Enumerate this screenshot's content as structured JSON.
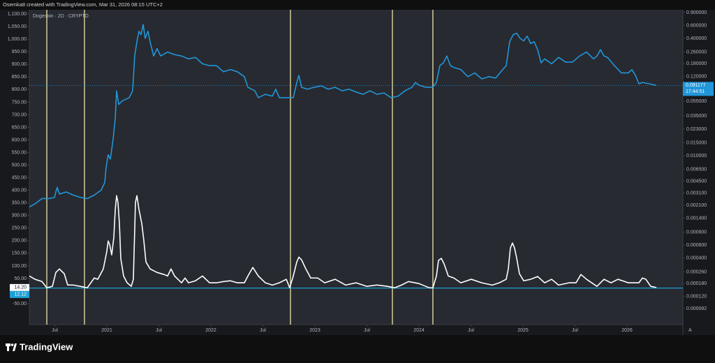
{
  "chart_data": {
    "type": "line",
    "credit": "Osemka8 created with TradingView.com, Mar 31, 2026 08:15 UTC+2",
    "title": "Dogecoin · 2D · CRYPTO",
    "brand": "TradingView",
    "auto_scale_label": "A",
    "xlim": [
      2020.255,
      2026.537
    ],
    "xticks": [
      {
        "value": 2020.5,
        "label": "Jul"
      },
      2021,
      {
        "value": 2021.5,
        "label": "Jul"
      },
      2022,
      {
        "value": 2022.5,
        "label": "Jul"
      },
      2023,
      {
        "value": 2023.5,
        "label": "Jul"
      },
      2024,
      {
        "value": 2024.5,
        "label": "Jul"
      },
      2025,
      {
        "value": 2025.5,
        "label": "Jul"
      },
      2026
    ],
    "ylim": [
      -133,
      1117
    ],
    "yticks": [
      {
        "value": 1100,
        "label": "1,100.00"
      },
      {
        "value": 1050,
        "label": "1,050.00"
      },
      {
        "value": 1000,
        "label": "1,000.00"
      },
      {
        "value": 950,
        "label": "950.00"
      },
      {
        "value": 900,
        "label": "900.00"
      },
      {
        "value": 850,
        "label": "850.00"
      },
      {
        "value": 800,
        "label": "800.00"
      },
      {
        "value": 750,
        "label": "750.00"
      },
      {
        "value": 700,
        "label": "700.00"
      },
      {
        "value": 650,
        "label": "650.00"
      },
      {
        "value": 600,
        "label": "600.00"
      },
      {
        "value": 550,
        "label": "550.00"
      },
      {
        "value": 500,
        "label": "500.00"
      },
      {
        "value": 450,
        "label": "450.00"
      },
      {
        "value": 400,
        "label": "400.00"
      },
      {
        "value": 350,
        "label": "350.00"
      },
      {
        "value": 300,
        "label": "300.00"
      },
      {
        "value": 250,
        "label": "250.00"
      },
      {
        "value": 200,
        "label": "200.00"
      },
      {
        "value": 150,
        "label": "150.00"
      },
      {
        "value": 100,
        "label": "100.00"
      },
      {
        "value": 50,
        "label": "50.00"
      },
      {
        "value": -50,
        "label": "-50.00"
      }
    ],
    "y2lim": [
      4.95e-05,
      0.983
    ],
    "y2_log": true,
    "y2ticks": [
      {
        "value": 0.9,
        "label": "0.900000"
      },
      {
        "value": 0.6,
        "label": "0.600000"
      },
      {
        "value": 0.4,
        "label": "0.400000"
      },
      {
        "value": 0.26,
        "label": "0.260000"
      },
      {
        "value": 0.18,
        "label": "0.180000"
      },
      {
        "value": 0.12,
        "label": "0.120000"
      },
      {
        "value": 0.055,
        "label": "0.055000"
      },
      {
        "value": 0.035,
        "label": "0.035000"
      },
      {
        "value": 0.023,
        "label": "0.023000"
      },
      {
        "value": 0.015,
        "label": "0.015000"
      },
      {
        "value": 0.01,
        "label": "0.010000"
      },
      {
        "value": 0.0065,
        "label": "0.006500"
      },
      {
        "value": 0.0045,
        "label": "0.004500"
      },
      {
        "value": 0.0031,
        "label": "0.003100"
      },
      {
        "value": 0.0021,
        "label": "0.002100"
      },
      {
        "value": 0.0014,
        "label": "0.001400"
      },
      {
        "value": 0.0009,
        "label": "0.000900"
      },
      {
        "value": 0.0006,
        "label": "0.000600"
      },
      {
        "value": 0.0004,
        "label": "0.000400"
      },
      {
        "value": 0.00026,
        "label": "0.000260"
      },
      {
        "value": 0.00018,
        "label": "0.000180"
      },
      {
        "value": 0.00012,
        "label": "0.000120"
      },
      {
        "value": 8.2e-05,
        "label": "0.000082"
      }
    ],
    "series": [
      {
        "color": "#2196d9",
        "axis": "y2",
        "x": [
          2020.255,
          2020.309,
          2020.376,
          2020.443,
          2020.497,
          2020.51,
          2020.523,
          2020.544,
          2020.611,
          2020.678,
          2020.745,
          2020.812,
          2020.879,
          2020.946,
          2020.98,
          2020.993,
          2021.013,
          2021.034,
          2021.06,
          2021.081,
          2021.094,
          2021.114,
          2021.148,
          2021.215,
          2021.248,
          2021.268,
          2021.289,
          2021.309,
          2021.329,
          2021.349,
          2021.369,
          2021.396,
          2021.416,
          2021.45,
          2021.483,
          2021.517,
          2021.584,
          2021.651,
          2021.718,
          2021.785,
          2021.852,
          2021.919,
          2021.987,
          2022.054,
          2022.121,
          2022.188,
          2022.255,
          2022.322,
          2022.356,
          2022.423,
          2022.456,
          2022.523,
          2022.591,
          2022.624,
          2022.658,
          2022.758,
          2022.792,
          2022.826,
          2022.846,
          2022.872,
          2022.926,
          2022.993,
          2023.06,
          2023.128,
          2023.195,
          2023.262,
          2023.329,
          2023.396,
          2023.463,
          2023.53,
          2023.597,
          2023.664,
          2023.732,
          2023.799,
          2023.866,
          2023.933,
          2023.966,
          2024.0,
          2024.067,
          2024.134,
          2024.168,
          2024.201,
          2024.235,
          2024.268,
          2024.302,
          2024.336,
          2024.403,
          2024.47,
          2024.537,
          2024.604,
          2024.671,
          2024.738,
          2024.805,
          2024.839,
          2024.872,
          2024.906,
          2024.94,
          2024.973,
          2025.007,
          2025.04,
          2025.074,
          2025.107,
          2025.141,
          2025.174,
          2025.208,
          2025.275,
          2025.342,
          2025.409,
          2025.477,
          2025.544,
          2025.611,
          2025.678,
          2025.711,
          2025.745,
          2025.779,
          2025.812,
          2025.879,
          2025.946,
          2026.013,
          2026.047,
          2026.081,
          2026.114,
          2026.148,
          2026.215,
          2026.282
        ],
        "values": [
          0.002,
          0.0022,
          0.0026,
          0.0026,
          0.0027,
          0.0032,
          0.0037,
          0.003,
          0.0032,
          0.0029,
          0.0027,
          0.0026,
          0.0029,
          0.0034,
          0.0043,
          0.0069,
          0.0103,
          0.009,
          0.0167,
          0.032,
          0.077,
          0.05,
          0.056,
          0.062,
          0.077,
          0.23,
          0.36,
          0.5,
          0.45,
          0.62,
          0.4,
          0.5,
          0.36,
          0.23,
          0.29,
          0.23,
          0.26,
          0.24,
          0.23,
          0.21,
          0.22,
          0.18,
          0.17,
          0.17,
          0.14,
          0.15,
          0.14,
          0.12,
          0.086,
          0.077,
          0.062,
          0.069,
          0.065,
          0.081,
          0.062,
          0.062,
          0.062,
          0.1,
          0.125,
          0.086,
          0.081,
          0.086,
          0.09,
          0.081,
          0.086,
          0.077,
          0.081,
          0.074,
          0.069,
          0.077,
          0.069,
          0.072,
          0.062,
          0.065,
          0.077,
          0.086,
          0.1,
          0.092,
          0.086,
          0.086,
          0.1,
          0.17,
          0.185,
          0.23,
          0.17,
          0.16,
          0.15,
          0.12,
          0.135,
          0.112,
          0.12,
          0.115,
          0.15,
          0.17,
          0.36,
          0.45,
          0.47,
          0.4,
          0.37,
          0.43,
          0.34,
          0.36,
          0.28,
          0.185,
          0.21,
          0.18,
          0.22,
          0.19,
          0.19,
          0.23,
          0.26,
          0.21,
          0.23,
          0.28,
          0.23,
          0.22,
          0.17,
          0.135,
          0.135,
          0.15,
          0.125,
          0.096,
          0.1,
          0.096,
          0.091177
        ]
      },
      {
        "color": "#ffffff",
        "axis": "y",
        "x": [
          2020.255,
          2020.309,
          2020.376,
          2020.423,
          2020.477,
          2020.51,
          2020.544,
          2020.591,
          2020.624,
          2020.678,
          2020.745,
          2020.812,
          2020.879,
          2020.913,
          2020.966,
          2021.0,
          2021.013,
          2021.027,
          2021.047,
          2021.067,
          2021.081,
          2021.094,
          2021.107,
          2021.121,
          2021.134,
          2021.161,
          2021.195,
          2021.235,
          2021.255,
          2021.275,
          2021.289,
          2021.309,
          2021.336,
          2021.356,
          2021.376,
          2021.416,
          2021.483,
          2021.55,
          2021.584,
          2021.617,
          2021.651,
          2021.718,
          2021.752,
          2021.785,
          2021.852,
          2021.919,
          2021.987,
          2022.054,
          2022.121,
          2022.188,
          2022.255,
          2022.322,
          2022.356,
          2022.403,
          2022.456,
          2022.523,
          2022.591,
          2022.658,
          2022.725,
          2022.758,
          2022.792,
          2022.826,
          2022.846,
          2022.872,
          2022.913,
          2022.96,
          2023.027,
          2023.094,
          2023.195,
          2023.295,
          2023.396,
          2023.497,
          2023.597,
          2023.698,
          2023.765,
          2023.832,
          2023.899,
          2024.0,
          2024.101,
          2024.134,
          2024.168,
          2024.188,
          2024.215,
          2024.242,
          2024.282,
          2024.336,
          2024.403,
          2024.503,
          2024.604,
          2024.705,
          2024.772,
          2024.839,
          2024.859,
          2024.879,
          2024.899,
          2024.919,
          2024.94,
          2024.966,
          2025.007,
          2025.074,
          2025.141,
          2025.208,
          2025.275,
          2025.342,
          2025.443,
          2025.51,
          2025.557,
          2025.611,
          2025.711,
          2025.779,
          2025.846,
          2025.913,
          2026.013,
          2026.114,
          2026.148,
          2026.181,
          2026.228,
          2026.282
        ],
        "values": [
          60,
          47,
          38,
          13,
          19,
          74,
          88,
          69,
          24,
          24,
          19,
          13,
          52,
          47,
          88,
          158,
          199,
          185,
          144,
          213,
          324,
          379,
          352,
          268,
          130,
          60,
          33,
          19,
          47,
          352,
          379,
          324,
          268,
          199,
          116,
          88,
          74,
          66,
          60,
          88,
          60,
          33,
          52,
          33,
          41,
          60,
          33,
          33,
          38,
          41,
          33,
          33,
          60,
          94,
          60,
          33,
          24,
          33,
          47,
          13,
          60,
          116,
          135,
          124,
          88,
          52,
          52,
          33,
          47,
          24,
          33,
          19,
          24,
          19,
          13,
          24,
          38,
          30,
          13,
          13,
          60,
          122,
          130,
          108,
          60,
          52,
          33,
          47,
          33,
          24,
          33,
          47,
          88,
          171,
          191,
          171,
          130,
          69,
          41,
          47,
          58,
          33,
          47,
          24,
          33,
          33,
          66,
          47,
          19,
          47,
          33,
          47,
          33,
          33,
          52,
          47,
          19,
          14.2
        ]
      }
    ],
    "vlines": {
      "color": "#ece6a6",
      "x": [
        2020.423,
        2020.785,
        2022.765,
        2023.745,
        2024.134
      ]
    },
    "hline": {
      "color": "#1fa0d6",
      "value": 12.12
    },
    "price_line": {
      "color": "#2196d9",
      "value": 0.091177
    },
    "y_markers": [
      {
        "value": 14.2,
        "label": "14.20",
        "color": "#ffffff",
        "text_color": "#131722"
      },
      {
        "value": 12.12,
        "label": "12.12",
        "color": "#1fa0d6",
        "text_color": "#ffffff"
      }
    ],
    "y2_marker": {
      "value": 0.091177,
      "label": "0.091177",
      "countdown": "17:44:51",
      "color": "#2196d9",
      "text_color": "#ffffff"
    }
  }
}
